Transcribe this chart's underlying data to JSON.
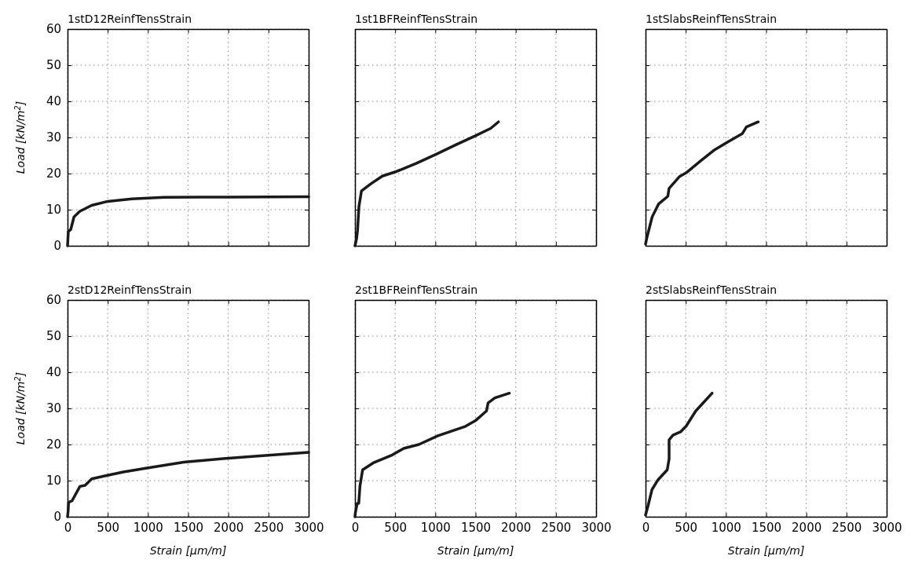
{
  "chart_data": [
    {
      "type": "line",
      "title": "1stD12ReinfTensStrain",
      "ylabel": "Load [kN/m$^{2}$]",
      "xlim": [
        0,
        3000
      ],
      "xticks": [
        0,
        500,
        1000,
        1500,
        2000,
        2500,
        3000
      ],
      "ylim": [
        0,
        60
      ],
      "yticks": [
        0,
        10,
        20,
        30,
        40,
        50,
        60
      ],
      "grid": true,
      "tick_labels": "y",
      "series": [
        {
          "color": "#1a1a1a",
          "x": [
            0,
            10,
            40,
            80,
            150,
            300,
            500,
            800,
            1200,
            2000,
            3000
          ],
          "values": [
            0,
            4,
            4.5,
            8,
            9.5,
            11.2,
            12.3,
            13,
            13.4,
            13.5,
            13.6
          ]
        }
      ]
    },
    {
      "type": "line",
      "title": "1st1BFReinfTensStrain",
      "xlim": [
        0,
        3000
      ],
      "xticks": [
        0,
        500,
        1000,
        1500,
        2000,
        2500,
        3000
      ],
      "ylim": [
        0,
        60
      ],
      "yticks": [
        0,
        10,
        20,
        30,
        40,
        50,
        60
      ],
      "grid": true,
      "tick_labels": false,
      "series": [
        {
          "color": "#1a1a1a",
          "x": [
            0,
            20,
            32,
            49,
            81,
            200,
            340,
            520,
            760,
            1006,
            1250,
            1494,
            1688,
            1785
          ],
          "values": [
            0,
            2,
            4.3,
            10.8,
            15.2,
            17.2,
            19.3,
            20.6,
            22.8,
            25.3,
            27.9,
            30.4,
            32.5,
            34.3
          ]
        }
      ]
    },
    {
      "type": "line",
      "title": "1stSlabsReinfTensStrain",
      "xlim": [
        0,
        3000
      ],
      "xticks": [
        0,
        500,
        1000,
        1500,
        2000,
        2500,
        3000
      ],
      "ylim": [
        0,
        60
      ],
      "yticks": [
        0,
        10,
        20,
        30,
        40,
        50,
        60
      ],
      "grid": true,
      "tick_labels": false,
      "series": [
        {
          "color": "#1a1a1a",
          "x": [
            0,
            16,
            82,
            163,
            277,
            293,
            424,
            505,
            685,
            848,
            1011,
            1206,
            1255,
            1402
          ],
          "values": [
            0.5,
            2.2,
            8,
            11.6,
            13.7,
            15.9,
            19.2,
            20.2,
            23.5,
            26.4,
            28.6,
            31.1,
            32.9,
            34.3
          ]
        }
      ]
    },
    {
      "type": "line",
      "title": "2stD12ReinfTensStrain",
      "xlabel": "Strain [μm/m]",
      "ylabel": "Load [kN/m$^{2}$]",
      "xlim": [
        0,
        3000
      ],
      "xticks": [
        0,
        500,
        1000,
        1500,
        2000,
        2500,
        3000
      ],
      "ylim": [
        0,
        60
      ],
      "yticks": [
        0,
        10,
        20,
        30,
        40,
        50,
        60
      ],
      "grid": true,
      "series": [
        {
          "color": "#1a1a1a",
          "x": [
            0,
            7,
            13,
            56,
            154,
            219,
            301,
            464,
            694,
            988,
            1446,
            1937,
            2427,
            3000
          ],
          "values": [
            0,
            1.5,
            4,
            4.4,
            8.4,
            8.7,
            10.5,
            11.3,
            12.4,
            13.5,
            15.1,
            16.1,
            16.9,
            17.8
          ]
        }
      ]
    },
    {
      "type": "line",
      "title": "2st1BFReinfTensStrain",
      "xlabel": "Strain [μm/m]",
      "xlim": [
        0,
        3000
      ],
      "xticks": [
        0,
        500,
        1000,
        1500,
        2000,
        2500,
        3000
      ],
      "ylim": [
        0,
        60
      ],
      "yticks": [
        0,
        10,
        20,
        30,
        40,
        50,
        60
      ],
      "grid": true,
      "tick_labels": "x",
      "series": [
        {
          "color": "#1a1a1a",
          "x": [
            0,
            5,
            28,
            47,
            62,
            95,
            227,
            464,
            606,
            795,
            1032,
            1363,
            1505,
            1637,
            1656,
            1741,
            1921
          ],
          "values": [
            0,
            1.1,
            3.7,
            3.7,
            8.5,
            13,
            14.9,
            17.1,
            18.9,
            20,
            22.4,
            24.9,
            26.7,
            29.3,
            31.5,
            32.9,
            34.2
          ]
        }
      ]
    },
    {
      "type": "line",
      "title": "2stSlabsReinfTensStrain",
      "xlabel": "Strain [μm/m]",
      "xlim": [
        0,
        3000
      ],
      "xticks": [
        0,
        500,
        1000,
        1500,
        2000,
        2500,
        3000
      ],
      "ylim": [
        0,
        60
      ],
      "yticks": [
        0,
        10,
        20,
        30,
        40,
        50,
        60
      ],
      "grid": true,
      "tick_labels": "x",
      "series": [
        {
          "color": "#1a1a1a",
          "x": [
            0,
            33,
            80,
            151,
            270,
            293,
            293,
            341,
            435,
            506,
            625,
            828
          ],
          "values": [
            0.5,
            3.2,
            7.5,
            10.1,
            13,
            16,
            21.3,
            22.6,
            23.5,
            25.1,
            29.3,
            34.2
          ]
        }
      ]
    }
  ]
}
